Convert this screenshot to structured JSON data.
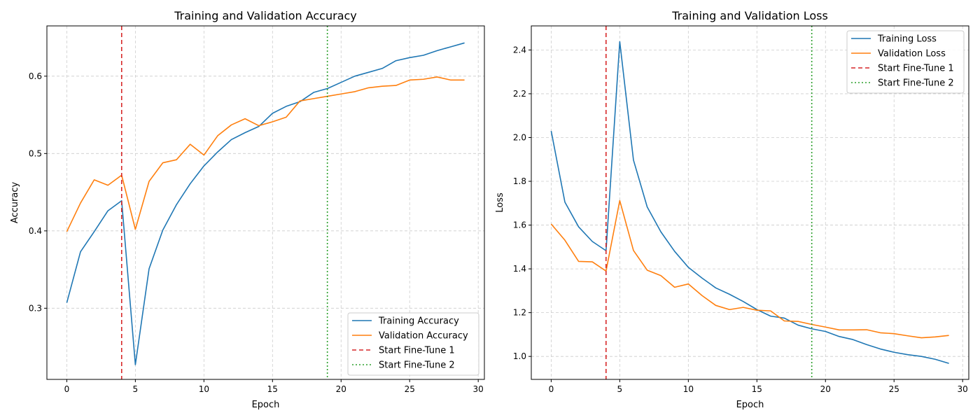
{
  "chart_data": [
    {
      "type": "line",
      "title": "Training and Validation Accuracy",
      "xlabel": "Epoch",
      "ylabel": "Accuracy",
      "xlim": [
        -1.45,
        30.45
      ],
      "ylim": [
        0.208,
        0.665
      ],
      "xticks": [
        0,
        5,
        10,
        15,
        20,
        25,
        30
      ],
      "yticks": [
        0.3,
        0.4,
        0.5,
        0.6
      ],
      "ytick_labels": [
        "0.3",
        "0.4",
        "0.5",
        "0.6"
      ],
      "grid": true,
      "legend_position": "lower-right",
      "x": [
        0,
        1,
        2,
        3,
        4,
        5,
        6,
        7,
        8,
        9,
        10,
        11,
        12,
        13,
        14,
        15,
        16,
        17,
        18,
        19,
        20,
        21,
        22,
        23,
        24,
        25,
        26,
        27,
        28,
        29
      ],
      "series": [
        {
          "name": "Training Accuracy",
          "color": "#1f77b4",
          "style": "solid",
          "values": [
            0.307,
            0.373,
            0.399,
            0.426,
            0.439,
            0.227,
            0.351,
            0.401,
            0.434,
            0.461,
            0.484,
            0.502,
            0.518,
            0.527,
            0.535,
            0.552,
            0.561,
            0.567,
            0.579,
            0.584,
            0.592,
            0.6,
            0.605,
            0.61,
            0.62,
            0.624,
            0.627,
            0.633,
            0.638,
            0.643
          ]
        },
        {
          "name": "Validation Accuracy",
          "color": "#ff7f0e",
          "style": "solid",
          "values": [
            0.399,
            0.436,
            0.466,
            0.459,
            0.472,
            0.402,
            0.464,
            0.488,
            0.492,
            0.512,
            0.498,
            0.523,
            0.537,
            0.545,
            0.536,
            0.541,
            0.547,
            0.568,
            0.571,
            0.574,
            0.577,
            0.58,
            0.585,
            0.587,
            0.588,
            0.595,
            0.596,
            0.599,
            0.595,
            0.595
          ]
        }
      ],
      "vlines": [
        {
          "name": "Start Fine-Tune 1",
          "x": 4,
          "color": "#d62728",
          "style": "dashed"
        },
        {
          "name": "Start Fine-Tune 2",
          "x": 19,
          "color": "#2ca02c",
          "style": "dotted"
        }
      ]
    },
    {
      "type": "line",
      "title": "Training and Validation Loss",
      "xlabel": "Epoch",
      "ylabel": "Loss",
      "xlim": [
        -1.45,
        30.45
      ],
      "ylim": [
        0.895,
        2.51
      ],
      "xticks": [
        0,
        5,
        10,
        15,
        20,
        25,
        30
      ],
      "yticks": [
        1.0,
        1.2,
        1.4,
        1.6,
        1.8,
        2.0,
        2.2,
        2.4
      ],
      "ytick_labels": [
        "1.0",
        "1.2",
        "1.4",
        "1.6",
        "1.8",
        "2.0",
        "2.2",
        "2.4"
      ],
      "grid": true,
      "legend_position": "upper-right",
      "x": [
        0,
        1,
        2,
        3,
        4,
        5,
        6,
        7,
        8,
        9,
        10,
        11,
        12,
        13,
        14,
        15,
        16,
        17,
        18,
        19,
        20,
        21,
        22,
        23,
        24,
        25,
        26,
        27,
        28,
        29
      ],
      "series": [
        {
          "name": "Training Loss",
          "color": "#1f77b4",
          "style": "solid",
          "values": [
            2.03,
            1.705,
            1.592,
            1.525,
            1.483,
            2.438,
            1.897,
            1.683,
            1.569,
            1.48,
            1.407,
            1.358,
            1.313,
            1.284,
            1.251,
            1.214,
            1.184,
            1.175,
            1.143,
            1.126,
            1.114,
            1.091,
            1.077,
            1.054,
            1.034,
            1.019,
            1.008,
            1.0,
            0.987,
            0.968
          ]
        },
        {
          "name": "Validation Loss",
          "color": "#ff7f0e",
          "style": "solid",
          "values": [
            1.605,
            1.531,
            1.434,
            1.432,
            1.39,
            1.712,
            1.484,
            1.394,
            1.369,
            1.316,
            1.331,
            1.278,
            1.233,
            1.214,
            1.224,
            1.211,
            1.208,
            1.162,
            1.16,
            1.146,
            1.134,
            1.121,
            1.121,
            1.122,
            1.108,
            1.104,
            1.094,
            1.085,
            1.089,
            1.096
          ]
        }
      ],
      "vlines": [
        {
          "name": "Start Fine-Tune 1",
          "x": 4,
          "color": "#d62728",
          "style": "dashed"
        },
        {
          "name": "Start Fine-Tune 2",
          "x": 19,
          "color": "#2ca02c",
          "style": "dotted"
        }
      ]
    }
  ]
}
